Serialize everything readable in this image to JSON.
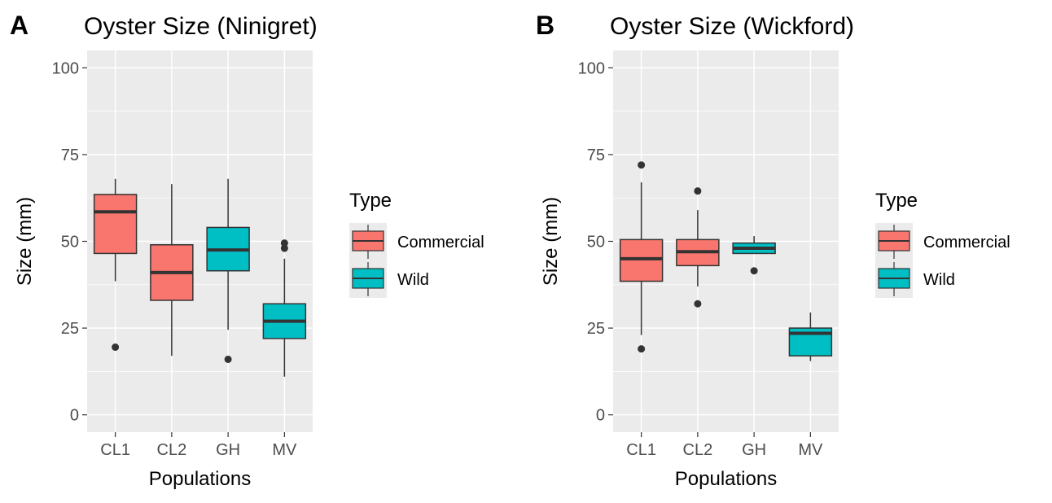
{
  "chart_data": [
    {
      "type": "boxplot",
      "panel_label": "A",
      "title": "Oyster Size (Ninigret)",
      "xlabel": "Populations",
      "ylabel": "Size (mm)",
      "ylim": [
        -5,
        105
      ],
      "yticks": [
        0,
        25,
        50,
        75,
        100
      ],
      "categories": [
        "CL1",
        "CL2",
        "GH",
        "MV"
      ],
      "boxes": [
        {
          "category": "CL1",
          "type": "Commercial",
          "whisker_low": 38.5,
          "q1": 46.5,
          "median": 58.5,
          "q3": 63.5,
          "whisker_high": 68,
          "outliers": [
            19.5
          ]
        },
        {
          "category": "CL2",
          "type": "Commercial",
          "whisker_low": 17,
          "q1": 33,
          "median": 41,
          "q3": 49,
          "whisker_high": 66.5,
          "outliers": []
        },
        {
          "category": "GH",
          "type": "Wild",
          "whisker_low": 24.5,
          "q1": 41.5,
          "median": 47.5,
          "q3": 54,
          "whisker_high": 68,
          "outliers": [
            16
          ]
        },
        {
          "category": "MV",
          "type": "Wild",
          "whisker_low": 11,
          "q1": 22,
          "median": 27,
          "q3": 32,
          "whisker_high": 45,
          "outliers": [
            48,
            49.5
          ]
        }
      ],
      "legend": {
        "title": "Type",
        "entries": [
          {
            "label": "Commercial",
            "color": "#F8766D"
          },
          {
            "label": "Wild",
            "color": "#00BFC4"
          }
        ]
      }
    },
    {
      "type": "boxplot",
      "panel_label": "B",
      "title": "Oyster Size (Wickford)",
      "xlabel": "Populations",
      "ylabel": "Size (mm)",
      "ylim": [
        -5,
        105
      ],
      "yticks": [
        0,
        25,
        50,
        75,
        100
      ],
      "categories": [
        "CL1",
        "CL2",
        "GH",
        "MV"
      ],
      "boxes": [
        {
          "category": "CL1",
          "type": "Commercial",
          "whisker_low": 23,
          "q1": 38.5,
          "median": 45,
          "q3": 50.5,
          "whisker_high": 67,
          "outliers": [
            72,
            19
          ]
        },
        {
          "category": "CL2",
          "type": "Commercial",
          "whisker_low": 37,
          "q1": 43,
          "median": 47,
          "q3": 50.5,
          "whisker_high": 59,
          "outliers": [
            64.5,
            32
          ]
        },
        {
          "category": "GH",
          "type": "Wild",
          "whisker_low": 46.5,
          "q1": 46.5,
          "median": 48,
          "q3": 49.5,
          "whisker_high": 51.5,
          "outliers": [
            41.5
          ]
        },
        {
          "category": "MV",
          "type": "Wild",
          "whisker_low": 15.5,
          "q1": 17,
          "median": 23.5,
          "q3": 25,
          "whisker_high": 29.5,
          "outliers": []
        }
      ],
      "legend": {
        "title": "Type",
        "entries": [
          {
            "label": "Commercial",
            "color": "#F8766D"
          },
          {
            "label": "Wild",
            "color": "#00BFC4"
          }
        ]
      }
    }
  ],
  "colors": {
    "panel_background": "#EBEBEB",
    "grid": "#FFFFFF",
    "box_outline": "#333333",
    "tick_text": "#4D4D4D"
  }
}
